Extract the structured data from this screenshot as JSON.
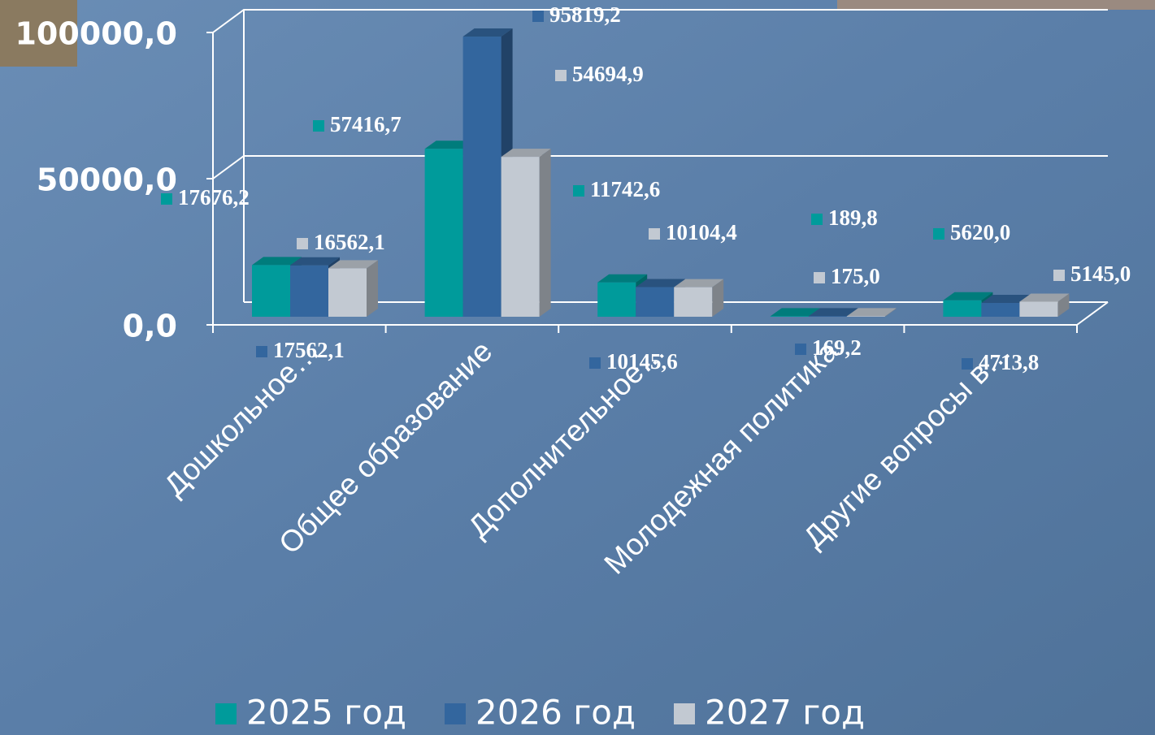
{
  "chart_data": {
    "type": "bar3d",
    "categories": [
      "Дошкольное…",
      "Общее образование",
      "Дополнительное…",
      "Молодежная политика",
      "Другие вопросы в…"
    ],
    "series": [
      {
        "name": "2025 год",
        "color": "#009b9b",
        "values": [
          17676.2,
          57416.7,
          11742.6,
          189.8,
          5620.0
        ],
        "value_labels": [
          "17676,2",
          "57416,7",
          "11742,6",
          "189,8",
          "5620,0"
        ]
      },
      {
        "name": "2026 год",
        "color": "#33669e",
        "values": [
          17562.1,
          95819.2,
          10145.6,
          169.2,
          4713.8
        ],
        "value_labels": [
          "17562,1",
          "95819,2",
          "10145,6",
          "169,2",
          "4713,8"
        ]
      },
      {
        "name": "2027 год",
        "color": "#c2c9d2",
        "values": [
          16562.1,
          54694.9,
          10104.4,
          175.0,
          5145.0
        ],
        "value_labels": [
          "16562,1",
          "54694,9",
          "10104,4",
          "175,0",
          "5145,0"
        ]
      }
    ],
    "ylim": [
      0,
      100000
    ],
    "yticks": [
      {
        "value": 0,
        "label": "0,0"
      },
      {
        "value": 50000,
        "label": "50000,0"
      },
      {
        "value": 100000,
        "label": "100000,0"
      }
    ],
    "grid": true,
    "legend": "bottom"
  }
}
